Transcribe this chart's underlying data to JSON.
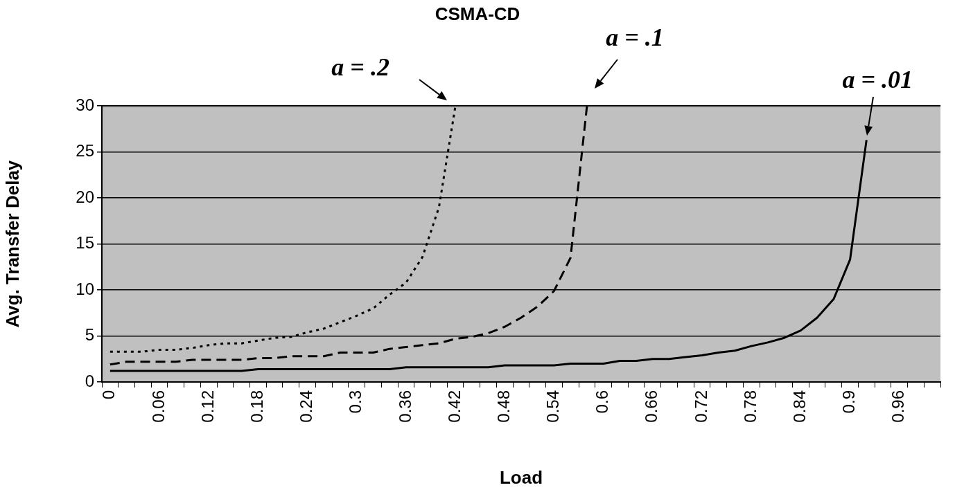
{
  "chart_data": {
    "type": "line",
    "title": "CSMA-CD",
    "xlabel": "Load",
    "ylabel": "Avg. Transfer Delay",
    "categories": [
      "0",
      null,
      null,
      "0.06",
      null,
      null,
      "0.12",
      null,
      null,
      "0.18",
      null,
      null,
      "0.24",
      null,
      null,
      "0.3",
      null,
      null,
      "0.36",
      null,
      null,
      "0.42",
      null,
      null,
      "0.48",
      null,
      null,
      "0.54",
      null,
      null,
      "0.6",
      null,
      null,
      "0.66",
      null,
      null,
      "0.72",
      null,
      null,
      "0.78",
      null,
      null,
      "0.84",
      null,
      null,
      "0.9",
      null,
      null,
      "0.96",
      null,
      null
    ],
    "series": [
      {
        "name": "a = .2",
        "color": "#000000",
        "line_style": "dotted",
        "values": [
          3.3,
          3.3,
          3.3,
          3.5,
          3.5,
          3.7,
          4.0,
          4.2,
          4.2,
          4.5,
          4.8,
          4.9,
          5.4,
          5.8,
          6.5,
          7.2,
          8.0,
          9.5,
          10.8,
          13.6,
          19.0,
          30,
          null,
          null,
          null,
          null,
          null,
          null,
          null,
          null,
          null,
          null,
          null,
          null,
          null,
          null,
          null,
          null,
          null,
          null,
          null,
          null,
          null,
          null,
          null,
          null,
          null,
          null,
          null,
          null,
          null
        ]
      },
      {
        "name": "a = .1",
        "color": "#000000",
        "line_style": "dashed",
        "values": [
          1.9,
          2.2,
          2.2,
          2.2,
          2.2,
          2.4,
          2.4,
          2.4,
          2.4,
          2.6,
          2.6,
          2.8,
          2.8,
          2.8,
          3.2,
          3.2,
          3.2,
          3.6,
          3.8,
          4.0,
          4.2,
          4.7,
          4.9,
          5.3,
          6.0,
          7.0,
          8.2,
          9.9,
          13.5,
          30,
          null,
          null,
          null,
          null,
          null,
          null,
          null,
          null,
          null,
          null,
          null,
          null,
          null,
          null,
          null,
          null,
          null,
          null,
          null,
          null,
          null
        ]
      },
      {
        "name": "a = .01",
        "color": "#000000",
        "line_style": "solid",
        "values": [
          1.2,
          1.2,
          1.2,
          1.2,
          1.2,
          1.2,
          1.2,
          1.2,
          1.2,
          1.4,
          1.4,
          1.4,
          1.4,
          1.4,
          1.4,
          1.4,
          1.4,
          1.4,
          1.6,
          1.6,
          1.6,
          1.6,
          1.6,
          1.6,
          1.8,
          1.8,
          1.8,
          1.8,
          2.0,
          2.0,
          2.0,
          2.3,
          2.3,
          2.5,
          2.5,
          2.7,
          2.9,
          3.2,
          3.4,
          3.9,
          4.3,
          4.8,
          5.6,
          7.0,
          9.0,
          13.3,
          26.3,
          null,
          null,
          null,
          null
        ]
      }
    ],
    "ylim": [
      0,
      30
    ],
    "yticks": [
      0,
      5,
      10,
      15,
      20,
      25,
      30
    ],
    "grid": "y",
    "legend": false,
    "marker": "none"
  }
}
